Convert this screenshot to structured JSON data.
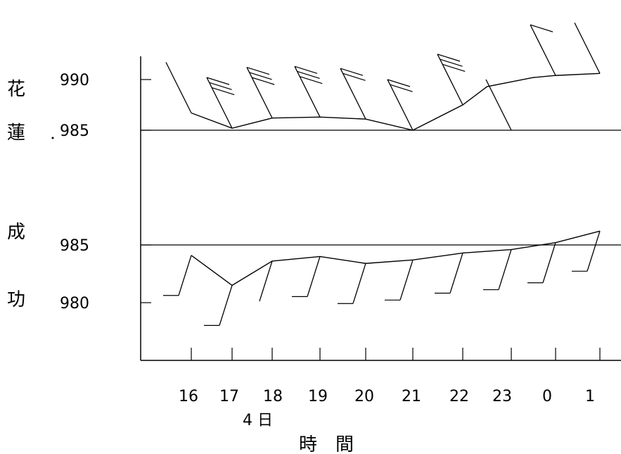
{
  "chart_data": {
    "type": "line",
    "xlabel": "時　間",
    "date_label": "4 日",
    "categories": [
      "16",
      "17",
      "18",
      "19",
      "20",
      "21",
      "22",
      "23",
      "0",
      "1"
    ],
    "panels": [
      {
        "station": "花蓮",
        "station_chars": [
          "花",
          "蓮"
        ],
        "y_ticks": [
          "990",
          "985"
        ],
        "y_tick_values": [
          990,
          985
        ],
        "reference_line": 985,
        "ylim": [
          984,
          991
        ],
        "series": {
          "x": [
            "16",
            "17",
            "18",
            "19",
            "20",
            "21",
            "22",
            "22.5",
            "23.5",
            "0",
            "1"
          ],
          "pressure": [
            986.7,
            985.2,
            986.2,
            986.3,
            986.1,
            985,
            987.5,
            989.3,
            990.2,
            990.4,
            990.6
          ]
        },
        "wind_barbs": [
          {
            "x": "16",
            "full_barbs": 0
          },
          {
            "x": "17",
            "full_barbs": 3
          },
          {
            "x": "18",
            "full_barbs": 3
          },
          {
            "x": "19",
            "full_barbs": 3
          },
          {
            "x": "20",
            "full_barbs": 2
          },
          {
            "x": "21",
            "full_barbs": 2
          },
          {
            "x": "22",
            "full_barbs": 3
          },
          {
            "x": "23",
            "full_barbs": 0
          },
          {
            "x": "0",
            "full_barbs": 1
          },
          {
            "x": "1",
            "full_barbs": 0
          }
        ]
      },
      {
        "station": "成功",
        "station_chars": [
          "成",
          "功"
        ],
        "y_ticks": [
          "985",
          "980"
        ],
        "y_tick_values": [
          985,
          980
        ],
        "reference_line": 985,
        "ylim": [
          978,
          986
        ],
        "series": {
          "x": [
            "16",
            "17",
            "18",
            "19",
            "20",
            "21",
            "22",
            "23",
            "0",
            "1"
          ],
          "pressure": [
            984.1,
            981.5,
            983.6,
            984,
            983.4,
            983.7,
            984.3,
            984.6,
            985.2,
            986.2
          ]
        },
        "wind_barbs": [
          {
            "x": "16",
            "full_barbs": 1
          },
          {
            "x": "17",
            "full_barbs": 1
          },
          {
            "x": "18",
            "full_barbs": 0
          },
          {
            "x": "19",
            "full_barbs": 1
          },
          {
            "x": "20",
            "full_barbs": 1
          },
          {
            "x": "21",
            "full_barbs": 1
          },
          {
            "x": "22",
            "full_barbs": 1
          },
          {
            "x": "23",
            "full_barbs": 1
          },
          {
            "x": "0",
            "full_barbs": 1
          },
          {
            "x": "1",
            "full_barbs": 1
          }
        ]
      }
    ],
    "grid": false,
    "legend": "none"
  }
}
